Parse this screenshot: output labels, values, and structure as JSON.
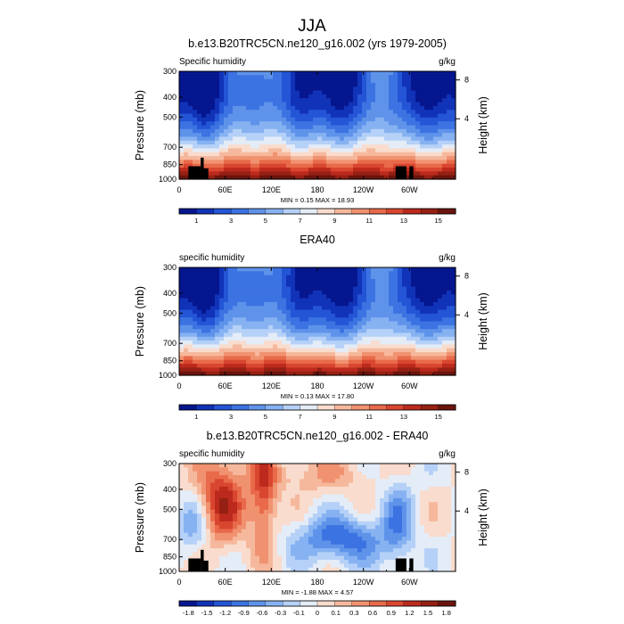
{
  "figure": {
    "title": "JJA"
  },
  "chart_data": [
    {
      "type": "heatmap",
      "title": "b.e13.B20TRC5CN.ne120_g16.002 (yrs 1979-2005)",
      "left_label": "Specific humidity",
      "right_label": "g/kg",
      "xlabel": "",
      "ylabel": "Pressure (mb)",
      "ylabel_right": "Height (km)",
      "x_ticks": [
        "0",
        "60E",
        "120E",
        "180",
        "120W",
        "60W"
      ],
      "y_ticks": [
        "300",
        "400",
        "500",
        "700",
        "850",
        "1000"
      ],
      "y_right_ticks": [
        "8",
        "4"
      ],
      "y_range_mb": [
        1000,
        300
      ],
      "stats_text": "MIN =   0.15  MAX =   18.93",
      "min": 0.15,
      "max": 18.93,
      "colorbar_ticks": [
        "1",
        "3",
        "5",
        "7",
        "9",
        "11",
        "13",
        "15"
      ],
      "colorbar_levels": [
        0,
        1,
        2,
        3,
        4,
        5,
        6,
        7,
        8,
        9,
        10,
        11,
        12,
        13,
        14,
        15,
        16
      ],
      "field": "humidity",
      "terrain": true
    },
    {
      "type": "heatmap",
      "title": "ERA40",
      "left_label": "specific humidity",
      "right_label": "g/kg",
      "xlabel": "",
      "ylabel": "Pressure (mb)",
      "ylabel_right": "Height (km)",
      "x_ticks": [
        "0",
        "60E",
        "120E",
        "180",
        "120W",
        "60W"
      ],
      "y_ticks": [
        "300",
        "400",
        "500",
        "700",
        "850",
        "1000"
      ],
      "y_right_ticks": [
        "8",
        "4"
      ],
      "y_range_mb": [
        1000,
        300
      ],
      "stats_text": "MIN =   0.13  MAX =   17.80",
      "min": 0.13,
      "max": 17.8,
      "colorbar_ticks": [
        "1",
        "3",
        "5",
        "7",
        "9",
        "11",
        "13",
        "15"
      ],
      "colorbar_levels": [
        0,
        1,
        2,
        3,
        4,
        5,
        6,
        7,
        8,
        9,
        10,
        11,
        12,
        13,
        14,
        15,
        16
      ],
      "field": "humidity_obs",
      "terrain": false
    },
    {
      "type": "heatmap",
      "title": "b.e13.B20TRC5CN.ne120_g16.002 - ERA40",
      "left_label": "specific humidity",
      "right_label": "g/kg",
      "xlabel": "",
      "ylabel": "Pressure (mb)",
      "ylabel_right": "Height (km)",
      "x_ticks": [
        "0",
        "60E",
        "120E",
        "180",
        "120W",
        "60W"
      ],
      "y_ticks": [
        "300",
        "400",
        "500",
        "700",
        "850",
        "1000"
      ],
      "y_right_ticks": [
        "8",
        "4"
      ],
      "y_range_mb": [
        1000,
        300
      ],
      "stats_text": "MIN =  -1.88  MAX =   4.57",
      "min": -1.88,
      "max": 4.57,
      "colorbar_ticks": [
        "-1.8",
        "-1.5",
        "-1.2",
        "-0.9",
        "-0.6",
        "-0.3",
        "-0.1",
        "0",
        "0.1",
        "0.3",
        "0.6",
        "0.9",
        "1.2",
        "1.5",
        "1.8"
      ],
      "field": "difference",
      "terrain": true
    }
  ]
}
